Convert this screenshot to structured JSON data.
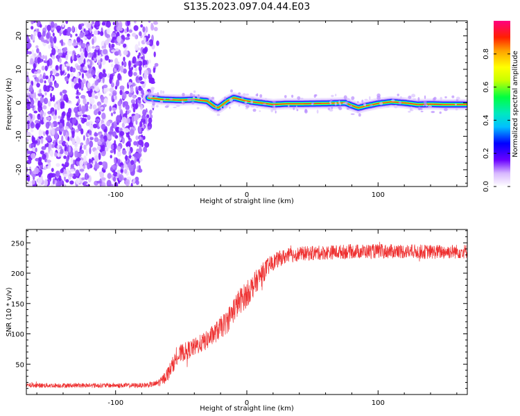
{
  "title": "S135.2023.097.04.44.E03",
  "colors": {
    "snr_line": "#ee3030",
    "track": "#ff2020"
  },
  "chart_data": [
    {
      "type": "heatmap",
      "xlabel": "Height of straight line (km)",
      "ylabel": "Frequency (Hz)",
      "xlim": [
        -168,
        168
      ],
      "ylim": [
        -25,
        24.5
      ],
      "xticks": [
        -100,
        0,
        100
      ],
      "yticks": [
        -20,
        -10,
        0,
        10,
        20
      ],
      "colorbar": {
        "label": "Normalized spectral amplitude",
        "range": [
          0,
          1
        ],
        "ticks": [
          0.0,
          0.2,
          0.4,
          0.6,
          0.8
        ],
        "colormap": "rainbow"
      },
      "noise_region_x": [
        -168,
        -70
      ],
      "track": {
        "x": [
          -75,
          -65,
          -50,
          -40,
          -30,
          -25,
          -22,
          -20,
          -15,
          -10,
          -5,
          0,
          10,
          20,
          30,
          40,
          60,
          75,
          80,
          85,
          90,
          100,
          110,
          120,
          130,
          140,
          150,
          168
        ],
        "freq": [
          1.5,
          1,
          0.8,
          1,
          0.5,
          -1,
          -1.5,
          -1,
          0.5,
          1.5,
          1,
          0.5,
          0,
          -0.5,
          -0.3,
          -0.3,
          -0.2,
          0,
          -0.8,
          -1.5,
          -1,
          -0.2,
          0.3,
          0,
          -0.5,
          -0.4,
          -0.5,
          -0.5
        ]
      }
    },
    {
      "type": "line",
      "xlabel": "Height of straight line (km)",
      "ylabel": "SNR (10 * v/v)",
      "xlim": [
        -168,
        168
      ],
      "ylim": [
        0,
        272
      ],
      "xticks": [
        -100,
        0,
        100
      ],
      "yticks": [
        50,
        100,
        150,
        200,
        250
      ],
      "series": [
        {
          "x": [
            -168,
            -140,
            -100,
            -80,
            -70,
            -65,
            -60,
            -55,
            -50,
            -40,
            -30,
            -20,
            -15,
            -10,
            -5,
            0,
            5,
            10,
            15,
            20,
            25,
            30,
            40,
            60,
            80,
            100,
            120,
            140,
            168
          ],
          "mean": [
            15,
            15,
            15,
            15,
            17,
            22,
            35,
            55,
            68,
            78,
            90,
            110,
            120,
            140,
            155,
            165,
            180,
            195,
            208,
            218,
            224,
            228,
            232,
            234,
            236,
            236,
            236,
            235,
            236
          ],
          "noise": [
            4,
            4,
            4,
            4,
            5,
            8,
            12,
            14,
            15,
            15,
            16,
            18,
            20,
            22,
            22,
            22,
            20,
            18,
            16,
            14,
            13,
            13,
            12,
            12,
            12,
            12,
            12,
            12,
            12
          ]
        }
      ]
    }
  ]
}
